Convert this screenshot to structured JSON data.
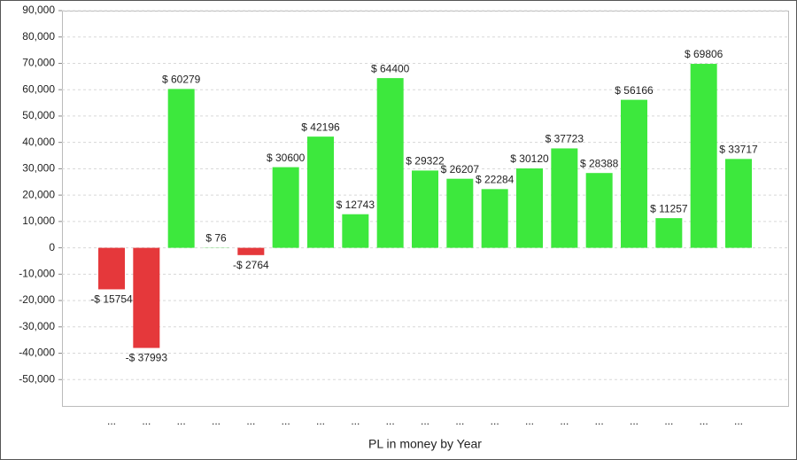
{
  "chart_data": {
    "type": "bar",
    "x_label": "PL in money by Year",
    "categories": [
      "...",
      "...",
      "...",
      "...",
      "...",
      "...",
      "...",
      "...",
      "...",
      "...",
      "...",
      "...",
      "...",
      "...",
      "...",
      "...",
      "...",
      "...",
      "..."
    ],
    "values": [
      -15754,
      -37993,
      60279,
      76,
      -2764,
      30600,
      42196,
      12743,
      64400,
      29322,
      26207,
      22284,
      30120,
      37723,
      28388,
      56166,
      11257,
      69806,
      33717
    ],
    "value_labels": [
      "-$ 15754",
      "-$ 37993",
      "$ 60279",
      "$ 76",
      "-$ 2764",
      "$ 30600",
      "$ 42196",
      "$ 12743",
      "$ 64400",
      "$ 29322",
      "$ 26207",
      "$ 22284",
      "$ 30120",
      "$ 37723",
      "$ 28388",
      "$ 56166",
      "$ 11257",
      "$ 69806",
      "$ 33717"
    ],
    "positive_color": "#3de83d",
    "negative_color": "#e5383b",
    "ylim": [
      -60000,
      90000
    ],
    "yticks": [
      {
        "value": -50000,
        "label": "-50,000"
      },
      {
        "value": -40000,
        "label": "-40,000"
      },
      {
        "value": -30000,
        "label": "-30,000"
      },
      {
        "value": -20000,
        "label": "-20,000"
      },
      {
        "value": -10000,
        "label": "-10,000"
      },
      0,
      {
        "value": 10000,
        "label": "10,000"
      },
      {
        "value": 20000,
        "label": "20,000"
      },
      {
        "value": 30000,
        "label": "30,000"
      },
      {
        "value": 40000,
        "label": "40,000"
      },
      {
        "value": 50000,
        "label": "50,000"
      },
      {
        "value": 60000,
        "label": "60,000"
      },
      {
        "value": 70000,
        "label": "70,000"
      },
      {
        "value": 80000,
        "label": "80,000"
      },
      {
        "value": 90000,
        "label": "90,000"
      }
    ],
    "grid": true
  }
}
